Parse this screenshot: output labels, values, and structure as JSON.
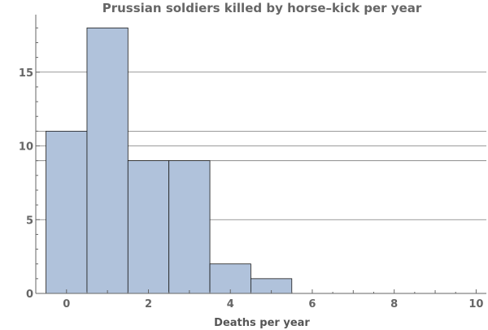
{
  "chart_data": {
    "type": "bar",
    "title": "Prussian soldiers killed by horse–kick per year",
    "xlabel": "Deaths per year",
    "ylabel": "",
    "bins": [
      {
        "center": 0,
        "width": 1,
        "count": 11
      },
      {
        "center": 1,
        "width": 1,
        "count": 18
      },
      {
        "center": 2,
        "width": 1,
        "count": 9
      },
      {
        "center": 3,
        "width": 1,
        "count": 9
      },
      {
        "center": 4,
        "width": 1,
        "count": 2
      },
      {
        "center": 5,
        "width": 1,
        "count": 1
      }
    ],
    "xlim": [
      -0.75,
      10.25
    ],
    "ylim": [
      0,
      18.9
    ],
    "xticks": [
      0,
      2,
      4,
      6,
      8,
      10
    ],
    "xtick_labels": [
      "0",
      "2",
      "4",
      "6",
      "8",
      "10"
    ],
    "yticks": [
      0,
      5,
      10,
      15
    ],
    "ytick_labels": [
      "0",
      "5",
      "10",
      "15"
    ],
    "gridlines_y": [
      5,
      9,
      10,
      11,
      15
    ],
    "bar_color": "#b0c2db",
    "bar_edge_color": "#1a1a1a",
    "grid_color": "#7a7a7a",
    "text_color": "#666666"
  }
}
